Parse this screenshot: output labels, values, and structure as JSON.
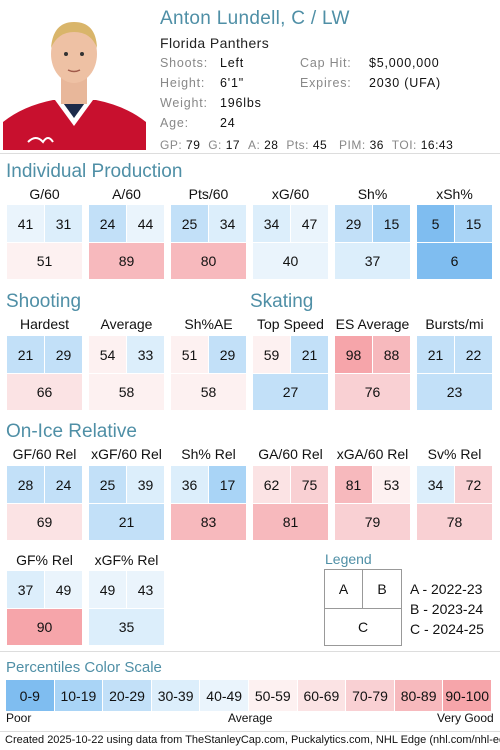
{
  "player": {
    "name": "Anton Lundell, C / LW",
    "team": "Florida Panthers",
    "shoots_label": "Shoots:",
    "shoots": "Left",
    "height_label": "Height:",
    "height": "6'1\"",
    "weight_label": "Weight:",
    "weight": "196lbs",
    "age_label": "Age:",
    "age": "24",
    "caphit_label": "Cap Hit:",
    "caphit": "$5,000,000",
    "expires_label": "Expires:",
    "expires": "2030 (UFA)"
  },
  "stats_line": {
    "gp_label": "GP:",
    "gp": "79",
    "g_label": "G:",
    "g": "17",
    "a_label": "A:",
    "a": "28",
    "pts_label": "Pts:",
    "pts": "45",
    "pim_label": "PIM:",
    "pim": "36",
    "toi_label": "TOI:",
    "toi": "16:43"
  },
  "sections": {
    "individual": "Individual Production",
    "shooting": "Shooting",
    "skating": "Skating",
    "onice": "On-Ice Relative"
  },
  "metrics": [
    {
      "label": "G/60",
      "a": "41",
      "b": "31",
      "c": "51",
      "ca": "#eaf4fc",
      "cb": "#dceefb",
      "cc": "#fdf1f1"
    },
    {
      "label": "A/60",
      "a": "24",
      "b": "44",
      "c": "89",
      "ca": "#c2e0f8",
      "cb": "#eaf4fc",
      "cc": "#f7b9bd"
    },
    {
      "label": "Pts/60",
      "a": "25",
      "b": "34",
      "c": "80",
      "ca": "#c2e0f8",
      "cb": "#dceefb",
      "cc": "#f7b9bd"
    },
    {
      "label": "xG/60",
      "a": "34",
      "b": "47",
      "c": "40",
      "ca": "#dceefb",
      "cb": "#eaf4fc",
      "cc": "#eaf4fc"
    },
    {
      "label": "Sh%",
      "a": "29",
      "b": "15",
      "c": "37",
      "ca": "#c2e0f8",
      "cb": "#a9d4f6",
      "cc": "#dceefb"
    },
    {
      "label": "xSh%",
      "a": "5",
      "b": "15",
      "c": "6",
      "ca": "#7fbdf0",
      "cb": "#a9d4f6",
      "cc": "#7fbdf0"
    },
    {
      "label": "Hardest",
      "a": "21",
      "b": "29",
      "c": "66",
      "ca": "#c2e0f8",
      "cb": "#c2e0f8",
      "cc": "#fbe3e4"
    },
    {
      "label": "Average",
      "a": "54",
      "b": "33",
      "c": "58",
      "ca": "#fdf1f1",
      "cb": "#dceefb",
      "cc": "#fdf1f1"
    },
    {
      "label": "Sh%AE",
      "a": "51",
      "b": "29",
      "c": "58",
      "ca": "#fdf1f1",
      "cb": "#c2e0f8",
      "cc": "#fdf1f1"
    },
    {
      "label": "Top Speed",
      "a": "59",
      "b": "21",
      "c": "27",
      "ca": "#fdf1f1",
      "cb": "#c2e0f8",
      "cc": "#c2e0f8"
    },
    {
      "label": "ES Average",
      "a": "98",
      "b": "88",
      "c": "76",
      "ca": "#f6a5aa",
      "cb": "#f7b9bd",
      "cc": "#f9d0d3"
    },
    {
      "label": "Bursts/mi",
      "a": "21",
      "b": "22",
      "c": "23",
      "ca": "#c2e0f8",
      "cb": "#c2e0f8",
      "cc": "#c2e0f8"
    },
    {
      "label": "GF/60 Rel",
      "a": "28",
      "b": "24",
      "c": "69",
      "ca": "#c2e0f8",
      "cb": "#c2e0f8",
      "cc": "#fbe3e4"
    },
    {
      "label": "xGF/60 Rel",
      "a": "25",
      "b": "39",
      "c": "21",
      "ca": "#c2e0f8",
      "cb": "#dceefb",
      "cc": "#c2e0f8"
    },
    {
      "label": "Sh% Rel",
      "a": "36",
      "b": "17",
      "c": "83",
      "ca": "#dceefb",
      "cb": "#a9d4f6",
      "cc": "#f7b9bd"
    },
    {
      "label": "GA/60 Rel",
      "a": "62",
      "b": "75",
      "c": "81",
      "ca": "#fbe3e4",
      "cb": "#f9d0d3",
      "cc": "#f7b9bd"
    },
    {
      "label": "xGA/60 Rel",
      "a": "81",
      "b": "53",
      "c": "79",
      "ca": "#f7b9bd",
      "cb": "#fdf1f1",
      "cc": "#f9d0d3"
    },
    {
      "label": "Sv% Rel",
      "a": "34",
      "b": "72",
      "c": "78",
      "ca": "#dceefb",
      "cb": "#f9d0d3",
      "cc": "#f9d0d3"
    },
    {
      "label": "GF% Rel",
      "a": "37",
      "b": "49",
      "c": "90",
      "ca": "#dceefb",
      "cb": "#eaf4fc",
      "cc": "#f6a5aa"
    },
    {
      "label": "xGF% Rel",
      "a": "49",
      "b": "43",
      "c": "35",
      "ca": "#eaf4fc",
      "cb": "#eaf4fc",
      "cc": "#dceefb"
    }
  ],
  "legend": {
    "title": "Legend",
    "a": "A",
    "b": "B",
    "c": "C",
    "a_text": "A - 2022-23",
    "b_text": "B - 2023-24",
    "c_text": "C - 2024-25"
  },
  "scale": {
    "title": "Percentiles Color Scale",
    "cells": [
      {
        "label": "0-9",
        "color": "#7fbdf0"
      },
      {
        "label": "10-19",
        "color": "#a9d4f6"
      },
      {
        "label": "20-29",
        "color": "#c2e0f8"
      },
      {
        "label": "30-39",
        "color": "#dceefb"
      },
      {
        "label": "40-49",
        "color": "#eaf4fc"
      },
      {
        "label": "50-59",
        "color": "#fdf1f1"
      },
      {
        "label": "60-69",
        "color": "#fbe3e4"
      },
      {
        "label": "70-79",
        "color": "#f9d0d3"
      },
      {
        "label": "80-89",
        "color": "#f7b9bd"
      },
      {
        "label": "90-100",
        "color": "#f6a5aa"
      }
    ],
    "poor": "Poor",
    "average": "Average",
    "very_good": "Very Good"
  },
  "footer": "Created 2025-10-22 using data from TheStanleyCap.com, Puckalytics.com, NHL Edge (nhl.com/nhl-edge)."
}
